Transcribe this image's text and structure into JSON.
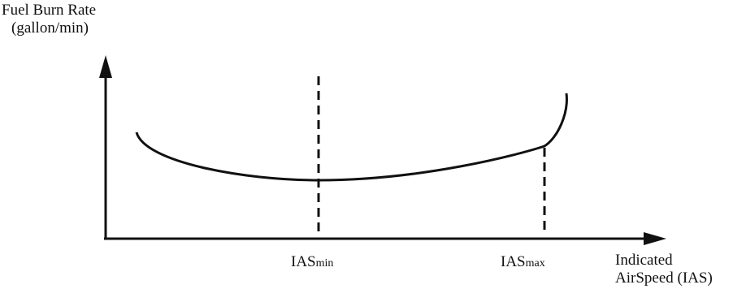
{
  "y_axis_label": [
    "Fuel Burn Rate",
    "(gallon/min)"
  ],
  "x_axis_label": [
    "Indicated",
    "AirSpeed (IAS)"
  ],
  "markers": [
    {
      "base": "IAS",
      "sub": "min"
    },
    {
      "base": "IAS",
      "sub": "max"
    }
  ],
  "colors": {
    "ink": "#111111",
    "background": "#ffffff"
  }
}
